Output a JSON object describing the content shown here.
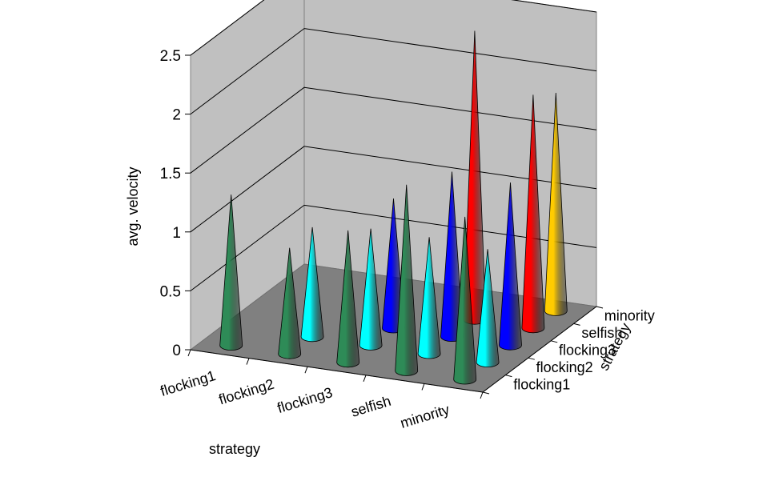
{
  "chart_data": {
    "type": "3d-cone",
    "title": "",
    "x_axis": {
      "label": "strategy",
      "categories": [
        "flocking1",
        "flocking2",
        "flocking3",
        "selfish",
        "minority"
      ]
    },
    "depth_axis": {
      "label": "strategy",
      "categories": [
        "flocking1",
        "flocking2",
        "flocking3",
        "selfish",
        "minority"
      ]
    },
    "y_axis": {
      "label": "avg. velocity",
      "min": 0,
      "max": 2.5,
      "ticks": [
        "0",
        "0.5",
        "1",
        "1.5",
        "2",
        "2.5"
      ]
    },
    "grid": true,
    "series_colors": [
      "#2e8b57",
      "#00ffff",
      "#0000ff",
      "#ff0000",
      "#ffcc00"
    ],
    "values": [
      [
        1.28,
        null,
        null,
        null,
        null
      ],
      [
        0.9,
        0.93,
        null,
        null,
        null
      ],
      [
        1.12,
        0.99,
        1.1,
        null,
        null
      ],
      [
        1.58,
        0.99,
        1.4,
        2.45,
        null
      ],
      [
        1.38,
        0.96,
        1.38,
        1.98,
        1.85
      ]
    ]
  }
}
